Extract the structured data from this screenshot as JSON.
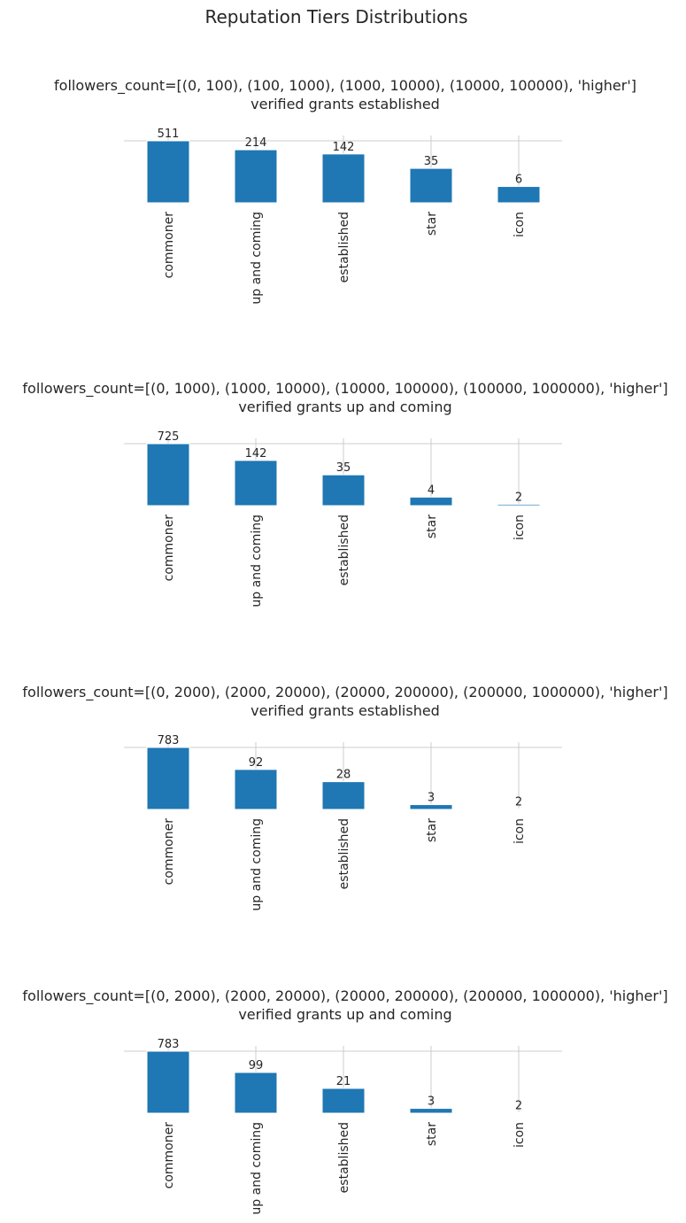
{
  "suptitle": "Reputation Tiers Distributions",
  "colors": {
    "bar": "#1f77b4",
    "grid": "#cccccc",
    "text": "#262626",
    "background": "#ffffff"
  },
  "chart_data": [
    {
      "type": "bar",
      "title_line1": "followers_count=[(0, 100), (100, 1000), (1000, 10000), (10000, 100000), 'higher']",
      "title_line2": "verified grants established",
      "categories": [
        "commoner",
        "up and coming",
        "established",
        "star",
        "icon"
      ],
      "values": [
        511,
        214,
        142,
        35,
        6
      ],
      "grid": true,
      "y_axis": "log"
    },
    {
      "type": "bar",
      "title_line1": "followers_count=[(0, 1000), (1000, 10000), (10000, 100000), (100000, 1000000), 'higher']",
      "title_line2": "verified grants up and coming",
      "categories": [
        "commoner",
        "up and coming",
        "established",
        "star",
        "icon"
      ],
      "values": [
        725,
        142,
        35,
        4,
        2
      ],
      "grid": true,
      "y_axis": "log"
    },
    {
      "type": "bar",
      "title_line1": "followers_count=[(0, 2000), (2000, 20000), (20000, 200000), (200000, 1000000), 'higher']",
      "title_line2": "verified grants established",
      "categories": [
        "commoner",
        "up and coming",
        "established",
        "star",
        "icon"
      ],
      "values": [
        783,
        92,
        28,
        3,
        2
      ],
      "grid": true,
      "y_axis": "log"
    },
    {
      "type": "bar",
      "title_line1": "followers_count=[(0, 2000), (2000, 20000), (20000, 200000), (200000, 1000000), 'higher']",
      "title_line2": "verified grants up and coming",
      "categories": [
        "commoner",
        "up and coming",
        "established",
        "star",
        "icon"
      ],
      "values": [
        783,
        99,
        21,
        3,
        2
      ],
      "grid": true,
      "y_axis": "log"
    }
  ]
}
